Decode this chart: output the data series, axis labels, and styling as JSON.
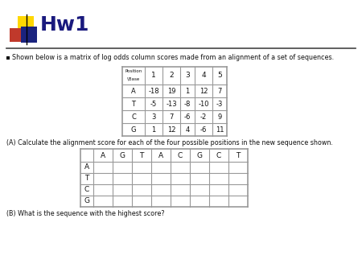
{
  "title": "Hw1",
  "bullet_text": "Shown below is a matrix of log odds column scores made from an alignment of a set of sequences.",
  "part_a_text": "(A) Calculate the alignment score for each of the four possible positions in the new sequence shown.",
  "part_b_text": "(B) What is the sequence with the highest score?",
  "matrix1_header_top": "Position",
  "matrix1_header_bot": "\\Base",
  "matrix1_col_headers": [
    "1",
    "2",
    "3",
    "4",
    "5"
  ],
  "matrix1_rows": [
    [
      "A",
      "-18",
      "19",
      "1",
      "12",
      "7"
    ],
    [
      "T",
      "-5",
      "-13",
      "-8",
      "-10",
      "-3"
    ],
    [
      "C",
      "3",
      "7",
      "-6",
      "-2",
      "9"
    ],
    [
      "G",
      "1",
      "12",
      "4",
      "-6",
      "11"
    ]
  ],
  "matrix2_col_headers": [
    "",
    "A",
    "G",
    "T",
    "A",
    "C",
    "G",
    "C",
    "T"
  ],
  "matrix2_row_headers": [
    "A",
    "T",
    "C",
    "G"
  ],
  "logo_yellow": "#FFD700",
  "logo_red": "#C0392B",
  "logo_blue": "#1A237E",
  "bg_color": "#FFFFFF",
  "title_color": "#1A1A7E",
  "text_color": "#111111",
  "table_line_color": "#999999",
  "rule_color": "#444444"
}
